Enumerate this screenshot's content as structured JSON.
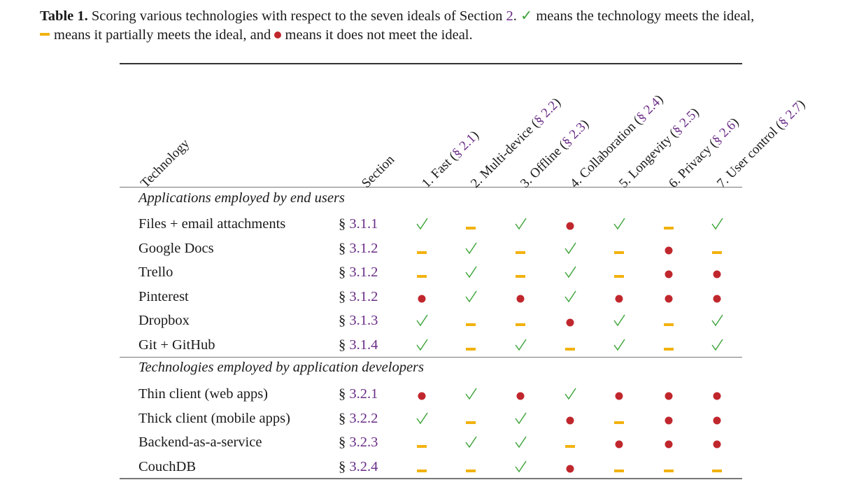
{
  "caption": {
    "label": "Table 1.",
    "text_a": "Scoring various technologies with respect to the seven ideals of Section",
    "section_ref": "2",
    "text_b": ".",
    "check_symbol": "✓",
    "text_c": "means the technology meets the ideal,",
    "text_d": "means it partially meets the ideal, and",
    "text_e": "means it does not meet the ideal."
  },
  "headers": {
    "technology": "Technology",
    "section": "Section",
    "ideals": [
      {
        "prefix": "1. Fast (",
        "ref": "§ 2.1",
        "suffix": ")"
      },
      {
        "prefix": "2. Multi-device (",
        "ref": "§ 2.2",
        "suffix": ")"
      },
      {
        "prefix": "3. Offline (",
        "ref": "§ 2.3",
        "suffix": ")"
      },
      {
        "prefix": "4. Collaboration (",
        "ref": "§ 2.4",
        "suffix": ")"
      },
      {
        "prefix": "5. Longevity (",
        "ref": "§ 2.5",
        "suffix": ")"
      },
      {
        "prefix": "6. Privacy (",
        "ref": "§ 2.6",
        "suffix": ")"
      },
      {
        "prefix": "7. User control (",
        "ref": "§ 2.7",
        "suffix": ")"
      }
    ]
  },
  "groups": [
    {
      "title": "Applications employed by end users",
      "rows": [
        {
          "technology": "Files + email attachments",
          "section_symbol": "§",
          "section": "3.1.1",
          "scores": [
            "yes",
            "partial",
            "yes",
            "no",
            "yes",
            "partial",
            "yes"
          ]
        },
        {
          "technology": "Google Docs",
          "section_symbol": "§",
          "section": "3.1.2",
          "scores": [
            "partial",
            "yes",
            "partial",
            "yes",
            "partial",
            "no",
            "partial"
          ]
        },
        {
          "technology": "Trello",
          "section_symbol": "§",
          "section": "3.1.2",
          "scores": [
            "partial",
            "yes",
            "partial",
            "yes",
            "partial",
            "no",
            "no"
          ]
        },
        {
          "technology": "Pinterest",
          "section_symbol": "§",
          "section": "3.1.2",
          "scores": [
            "no",
            "yes",
            "no",
            "yes",
            "no",
            "no",
            "no"
          ]
        },
        {
          "technology": "Dropbox",
          "section_symbol": "§",
          "section": "3.1.3",
          "scores": [
            "yes",
            "partial",
            "partial",
            "no",
            "yes",
            "partial",
            "yes"
          ]
        },
        {
          "technology": "Git + GitHub",
          "section_symbol": "§",
          "section": "3.1.4",
          "scores": [
            "yes",
            "partial",
            "yes",
            "partial",
            "yes",
            "partial",
            "yes"
          ]
        }
      ]
    },
    {
      "title": "Technologies employed by application developers",
      "rows": [
        {
          "technology": "Thin client (web apps)",
          "section_symbol": "§",
          "section": "3.2.1",
          "scores": [
            "no",
            "yes",
            "no",
            "yes",
            "no",
            "no",
            "no"
          ]
        },
        {
          "technology": "Thick client (mobile apps)",
          "section_symbol": "§",
          "section": "3.2.2",
          "scores": [
            "yes",
            "partial",
            "yes",
            "no",
            "partial",
            "no",
            "no"
          ]
        },
        {
          "technology": "Backend-as-a-service",
          "section_symbol": "§",
          "section": "3.2.3",
          "scores": [
            "partial",
            "yes",
            "yes",
            "partial",
            "no",
            "no",
            "no"
          ]
        },
        {
          "technology": "CouchDB",
          "section_symbol": "§",
          "section": "3.2.4",
          "scores": [
            "partial",
            "partial",
            "yes",
            "no",
            "partial",
            "partial",
            "partial"
          ]
        }
      ]
    }
  ],
  "colors": {
    "yes": "#3aa336",
    "partial": "#f2b20e",
    "no": "#c0272d",
    "link": "#6a2c86"
  }
}
